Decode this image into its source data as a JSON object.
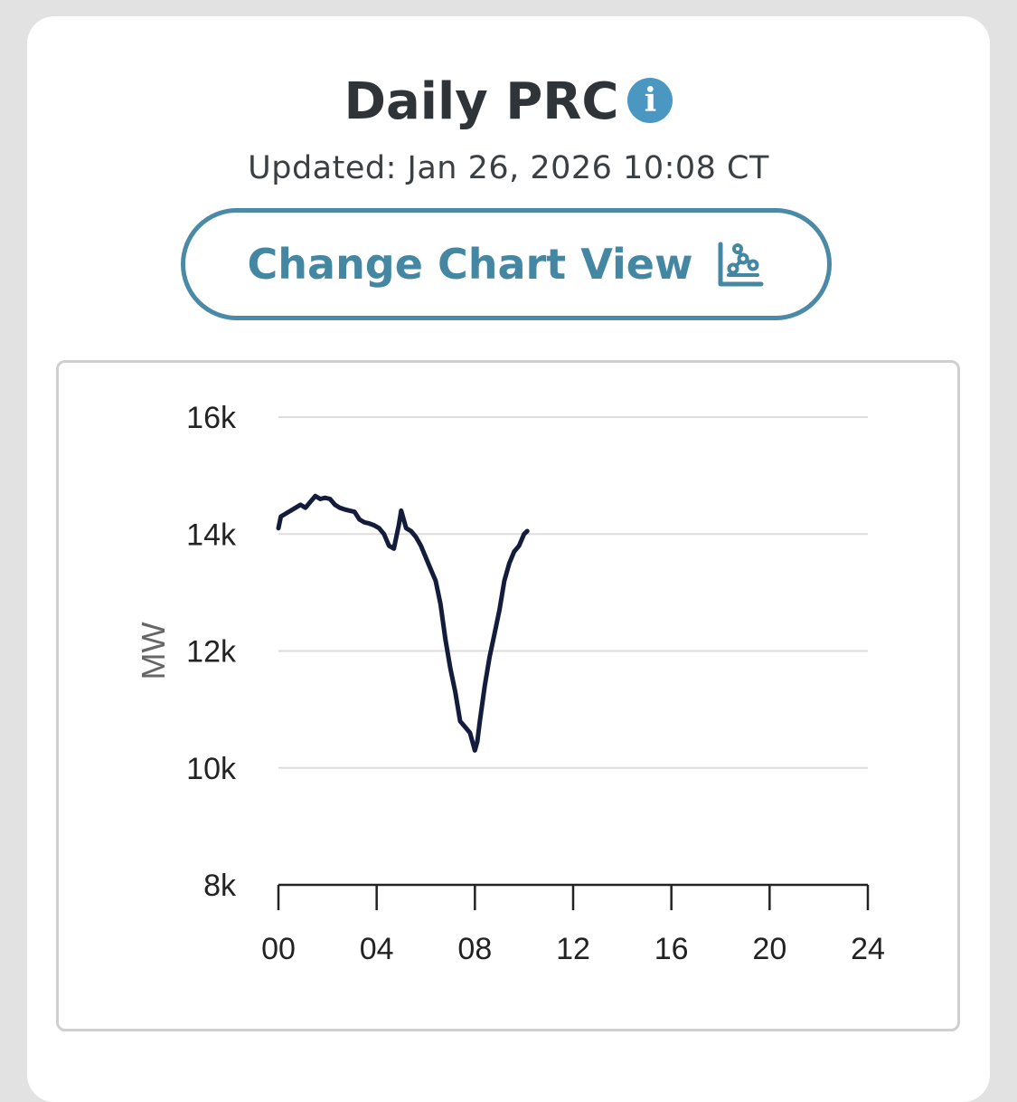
{
  "header": {
    "title": "Daily PRC",
    "info_icon": "info-icon",
    "updated": "Updated: Jan 26, 2026 10:08 CT"
  },
  "button": {
    "label": "Change Chart View",
    "icon": "chart-scatter-icon"
  },
  "colors": {
    "accent": "#4487a3",
    "info": "#4a97c2",
    "line": "#141c3c",
    "grid": "#dddddd"
  },
  "chart_data": {
    "type": "line",
    "xlabel": "",
    "ylabel": "MW",
    "xlim": [
      0,
      24
    ],
    "ylim": [
      8000,
      16000
    ],
    "xticks": [
      "00",
      "04",
      "08",
      "12",
      "16",
      "20",
      "24"
    ],
    "xtick_values": [
      0,
      4,
      8,
      12,
      16,
      20,
      24
    ],
    "yticks": [
      "8k",
      "10k",
      "12k",
      "14k",
      "16k"
    ],
    "ytick_values": [
      8000,
      10000,
      12000,
      14000,
      16000
    ],
    "grid": "horizontal",
    "series": [
      {
        "x": [
          0.0,
          0.1,
          0.3,
          0.5,
          0.7,
          0.9,
          1.1,
          1.3,
          1.5,
          1.7,
          1.9,
          2.1,
          2.3,
          2.5,
          2.7,
          2.9,
          3.1,
          3.3,
          3.5,
          3.7,
          3.9,
          4.1,
          4.3,
          4.5,
          4.7,
          4.8,
          4.9,
          5.0,
          5.2,
          5.4,
          5.6,
          5.8,
          6.0,
          6.2,
          6.4,
          6.6,
          6.8,
          7.0,
          7.2,
          7.4,
          7.6,
          7.8,
          8.0,
          8.1,
          8.2,
          8.4,
          8.6,
          8.8,
          9.0,
          9.2,
          9.4,
          9.6,
          9.8,
          10.0,
          10.13
        ],
        "values": [
          14100,
          14300,
          14350,
          14400,
          14450,
          14500,
          14450,
          14550,
          14650,
          14600,
          14620,
          14600,
          14500,
          14450,
          14420,
          14400,
          14380,
          14250,
          14200,
          14180,
          14150,
          14100,
          14000,
          13800,
          13750,
          13950,
          14150,
          14400,
          14100,
          14050,
          13950,
          13800,
          13600,
          13400,
          13200,
          12800,
          12200,
          11700,
          11300,
          10800,
          10700,
          10600,
          10300,
          10450,
          10800,
          11400,
          11900,
          12300,
          12700,
          13200,
          13500,
          13700,
          13800,
          14000,
          14050
        ]
      }
    ]
  }
}
